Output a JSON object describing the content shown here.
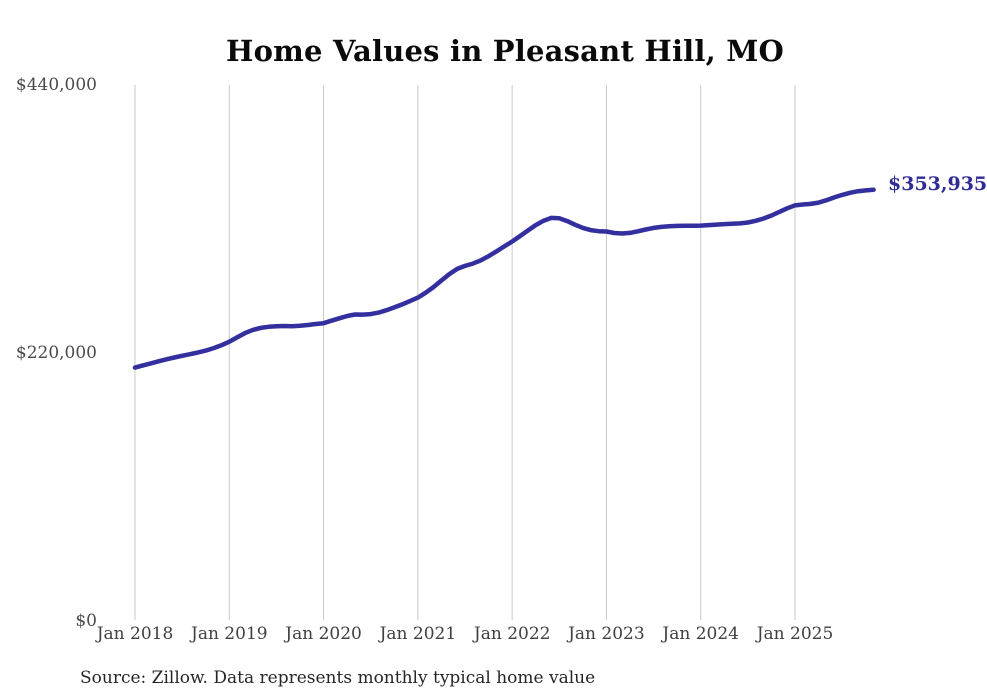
{
  "chart_data": {
    "type": "line",
    "title": "Home Values in Pleasant Hill, MO",
    "series_name": "Monthly typical home value",
    "x_ticks": [
      "Jan 2018",
      "Jan 2019",
      "Jan 2020",
      "Jan 2021",
      "Jan 2022",
      "Jan 2023",
      "Jan 2024",
      "Jan 2025"
    ],
    "y_ticks": [
      {
        "label": "$440,000",
        "value": 440000
      },
      {
        "label": "$220,000",
        "value": 220000
      },
      {
        "label": "$0",
        "value": 0
      }
    ],
    "ylim": [
      0,
      440000
    ],
    "grid": "vertical-only",
    "legend_position": "none",
    "end_label": "$353,935",
    "line_color": "#332f9e",
    "end_label_color": "#2f2b96",
    "gridline_color": "#c8c8c8",
    "x": [
      "2018-01",
      "2018-02",
      "2018-03",
      "2018-04",
      "2018-05",
      "2018-06",
      "2018-07",
      "2018-08",
      "2018-09",
      "2018-10",
      "2018-11",
      "2018-12",
      "2019-01",
      "2019-02",
      "2019-03",
      "2019-04",
      "2019-05",
      "2019-06",
      "2019-07",
      "2019-08",
      "2019-09",
      "2019-10",
      "2019-11",
      "2019-12",
      "2020-01",
      "2020-02",
      "2020-03",
      "2020-04",
      "2020-05",
      "2020-06",
      "2020-07",
      "2020-08",
      "2020-09",
      "2020-10",
      "2020-11",
      "2020-12",
      "2021-01",
      "2021-02",
      "2021-03",
      "2021-04",
      "2021-05",
      "2021-06",
      "2021-07",
      "2021-08",
      "2021-09",
      "2021-10",
      "2021-11",
      "2021-12",
      "2022-01",
      "2022-02",
      "2022-03",
      "2022-04",
      "2022-05",
      "2022-06",
      "2022-07",
      "2022-08",
      "2022-09",
      "2022-10",
      "2022-11",
      "2022-12",
      "2023-01",
      "2023-02",
      "2023-03",
      "2023-04",
      "2023-05",
      "2023-06",
      "2023-07",
      "2023-08",
      "2023-09",
      "2023-10",
      "2023-11",
      "2023-12",
      "2024-01",
      "2024-02",
      "2024-03",
      "2024-04",
      "2024-05",
      "2024-06",
      "2024-07",
      "2024-08",
      "2024-09",
      "2024-10",
      "2024-11",
      "2024-12",
      "2025-01",
      "2025-02",
      "2025-03",
      "2025-04",
      "2025-05",
      "2025-06",
      "2025-07",
      "2025-08",
      "2025-09",
      "2025-10",
      "2025-11"
    ],
    "values": [
      208000,
      209800,
      211500,
      213200,
      214800,
      216300,
      217700,
      219000,
      220400,
      222000,
      224000,
      226300,
      229300,
      232800,
      236300,
      239000,
      240600,
      241500,
      242000,
      242200,
      242000,
      242300,
      243000,
      243800,
      244500,
      246500,
      248500,
      250400,
      251600,
      251500,
      251900,
      253200,
      255100,
      257400,
      259900,
      262600,
      265500,
      269500,
      274200,
      279500,
      284800,
      289000,
      291500,
      293400,
      296000,
      299500,
      303400,
      307500,
      311500,
      316000,
      320600,
      325000,
      328600,
      330900,
      330600,
      328300,
      325300,
      322700,
      320900,
      320000,
      319700,
      318500,
      318100,
      318600,
      319900,
      321400,
      322700,
      323500,
      324000,
      324300,
      324400,
      324400,
      324600,
      325000,
      325400,
      325800,
      326100,
      326400,
      327100,
      328500,
      330400,
      332900,
      335800,
      338800,
      341200,
      341900,
      342400,
      343500,
      345400,
      347700,
      349800,
      351500,
      352800,
      353500,
      353935
    ]
  },
  "source_note": "Source: Zillow. Data represents monthly typical home value"
}
